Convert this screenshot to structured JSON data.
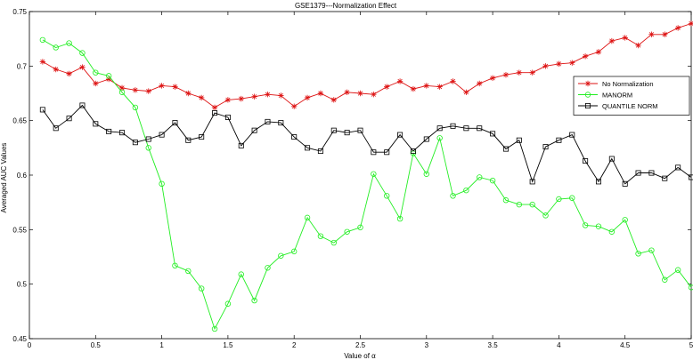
{
  "chart_data": {
    "type": "line",
    "title": "GSE1379---Normalization Effect",
    "xlabel": "Value of α",
    "ylabel": "Averaged AUC Values",
    "xlim": [
      0,
      5
    ],
    "ylim": [
      0.45,
      0.75
    ],
    "xticks": [
      "0",
      "0.5",
      "1",
      "1.5",
      "2",
      "2.5",
      "3",
      "3.5",
      "4",
      "4.5",
      "5"
    ],
    "yticks": [
      "0.45",
      "0.5",
      "0.55",
      "0.6",
      "0.65",
      "0.7",
      "0.75"
    ],
    "grid": false,
    "legend_position": "right",
    "x": [
      0.1,
      0.2,
      0.3,
      0.4,
      0.5,
      0.6,
      0.7,
      0.8,
      0.9,
      1.0,
      1.1,
      1.2,
      1.3,
      1.4,
      1.5,
      1.6,
      1.7,
      1.8,
      1.9,
      2.0,
      2.1,
      2.2,
      2.3,
      2.4,
      2.5,
      2.6,
      2.7,
      2.8,
      2.9,
      3.0,
      3.1,
      3.2,
      3.3,
      3.4,
      3.5,
      3.6,
      3.7,
      3.8,
      3.9,
      4.0,
      4.1,
      4.2,
      4.3,
      4.4,
      4.5,
      4.6,
      4.7,
      4.8,
      4.9,
      5.0
    ],
    "series": [
      {
        "name": "No Normalization",
        "color": "#dd1111",
        "marker": "star",
        "values": [
          0.704,
          0.697,
          0.693,
          0.699,
          0.684,
          0.688,
          0.68,
          0.678,
          0.677,
          0.682,
          0.681,
          0.675,
          0.671,
          0.662,
          0.669,
          0.67,
          0.672,
          0.674,
          0.673,
          0.663,
          0.671,
          0.675,
          0.669,
          0.676,
          0.675,
          0.674,
          0.681,
          0.686,
          0.679,
          0.682,
          0.681,
          0.686,
          0.676,
          0.684,
          0.689,
          0.692,
          0.694,
          0.694,
          0.7,
          0.702,
          0.703,
          0.709,
          0.713,
          0.723,
          0.726,
          0.719,
          0.729,
          0.729,
          0.735,
          0.739
        ]
      },
      {
        "name": "MANORM",
        "color": "#22ee22",
        "marker": "circle",
        "values": [
          0.724,
          0.717,
          0.721,
          0.712,
          0.694,
          0.691,
          0.676,
          0.662,
          0.625,
          0.592,
          0.517,
          0.512,
          0.496,
          0.459,
          0.482,
          0.509,
          0.485,
          0.515,
          0.526,
          0.53,
          0.561,
          0.544,
          0.538,
          0.548,
          0.552,
          0.601,
          0.581,
          0.56,
          0.62,
          0.601,
          0.634,
          0.581,
          0.586,
          0.598,
          0.595,
          0.577,
          0.573,
          0.573,
          0.563,
          0.578,
          0.579,
          0.554,
          0.553,
          0.548,
          0.559,
          0.528,
          0.531,
          0.504,
          0.513,
          0.497
        ]
      },
      {
        "name": "QUANTILE NORM",
        "color": "#000000",
        "marker": "square",
        "values": [
          0.66,
          0.643,
          0.652,
          0.664,
          0.647,
          0.64,
          0.639,
          0.63,
          0.633,
          0.637,
          0.648,
          0.632,
          0.635,
          0.657,
          0.653,
          0.627,
          0.641,
          0.649,
          0.648,
          0.635,
          0.625,
          0.622,
          0.641,
          0.639,
          0.641,
          0.621,
          0.621,
          0.637,
          0.622,
          0.633,
          0.643,
          0.645,
          0.643,
          0.643,
          0.638,
          0.624,
          0.632,
          0.594,
          0.626,
          0.632,
          0.637,
          0.613,
          0.594,
          0.615,
          0.592,
          0.602,
          0.602,
          0.597,
          0.607,
          0.598
        ]
      }
    ]
  }
}
